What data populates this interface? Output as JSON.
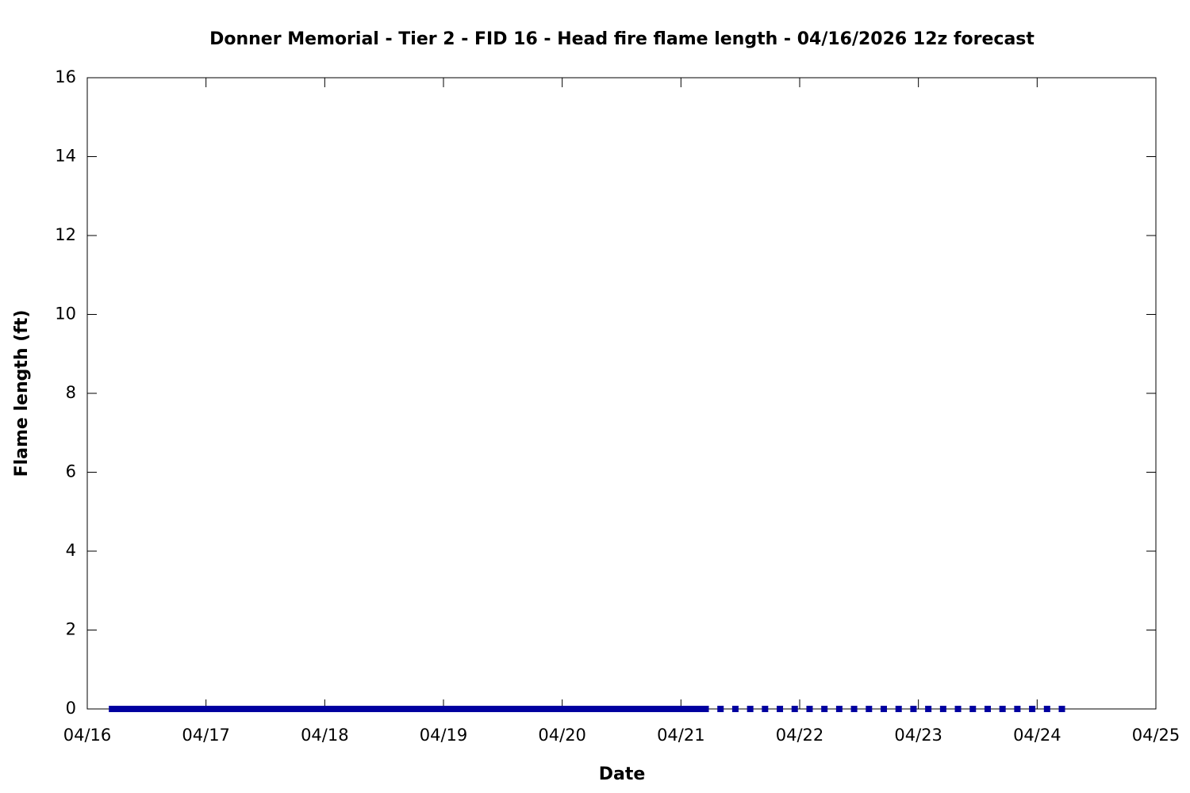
{
  "chart_data": {
    "type": "scatter",
    "title": "Donner Memorial - Tier 2 - FID 16 - Head fire flame length - 04/16/2026 12z forecast",
    "xlabel": "Date",
    "ylabel": "Flame length (ft)",
    "x": [
      5,
      6,
      7,
      8,
      9,
      10,
      11,
      12,
      13,
      14,
      15,
      16,
      17,
      18,
      19,
      20,
      21,
      22,
      23,
      24,
      25,
      26,
      27,
      28,
      29,
      30,
      31,
      32,
      33,
      34,
      35,
      36,
      37,
      38,
      39,
      40,
      41,
      42,
      43,
      44,
      45,
      46,
      47,
      48,
      49,
      50,
      51,
      52,
      53,
      54,
      55,
      56,
      57,
      58,
      59,
      60,
      61,
      62,
      63,
      64,
      65,
      66,
      67,
      68,
      69,
      70,
      71,
      72,
      73,
      74,
      75,
      76,
      77,
      78,
      79,
      80,
      81,
      82,
      83,
      84,
      85,
      86,
      87,
      88,
      89,
      90,
      91,
      92,
      93,
      94,
      95,
      96,
      97,
      98,
      99,
      100,
      101,
      102,
      103,
      104,
      105,
      106,
      107,
      108,
      109,
      110,
      111,
      112,
      113,
      114,
      115,
      116,
      117,
      118,
      119,
      120,
      121,
      122,
      123,
      124,
      125,
      128,
      131,
      134,
      137,
      140,
      143,
      146,
      149,
      152,
      155,
      158,
      161,
      164,
      167,
      170,
      173,
      176,
      179,
      182,
      185,
      188,
      191,
      194,
      197
    ],
    "values": [
      0,
      0,
      0,
      0,
      0,
      0,
      0,
      0,
      0,
      0,
      0,
      0,
      0,
      0,
      0,
      0,
      0,
      0,
      0,
      0,
      0,
      0,
      0,
      0,
      0,
      0,
      0,
      0,
      0,
      0,
      0,
      0,
      0,
      0,
      0,
      0,
      0,
      0,
      0,
      0,
      0,
      0,
      0,
      0,
      0,
      0,
      0,
      0,
      0,
      0,
      0,
      0,
      0,
      0,
      0,
      0,
      0,
      0,
      0,
      0,
      0,
      0,
      0,
      0,
      0,
      0,
      0,
      0,
      0,
      0,
      0,
      0,
      0,
      0,
      0,
      0,
      0,
      0,
      0,
      0,
      0,
      0,
      0,
      0,
      0,
      0,
      0,
      0,
      0,
      0,
      0,
      0,
      0,
      0,
      0,
      0,
      0,
      0,
      0,
      0,
      0,
      0,
      0,
      0,
      0,
      0,
      0,
      0,
      0,
      0,
      0,
      0,
      0,
      0,
      0,
      0,
      0,
      0,
      0,
      0,
      0,
      0,
      0,
      0,
      0,
      0,
      0,
      0,
      0,
      0,
      0,
      0,
      0,
      0,
      0,
      0,
      0,
      0,
      0,
      0,
      0,
      0,
      0,
      0,
      0
    ],
    "color": "#0000a0",
    "xlim": [
      0,
      216
    ],
    "xticks": [
      {
        "value": 0,
        "label": "04/16"
      },
      {
        "value": 24,
        "label": "04/17"
      },
      {
        "value": 48,
        "label": "04/18"
      },
      {
        "value": 72,
        "label": "04/19"
      },
      {
        "value": 96,
        "label": "04/20"
      },
      {
        "value": 120,
        "label": "04/21"
      },
      {
        "value": 144,
        "label": "04/22"
      },
      {
        "value": 168,
        "label": "04/23"
      },
      {
        "value": 192,
        "label": "04/24"
      },
      {
        "value": 216,
        "label": "04/25"
      }
    ],
    "ylim": [
      0,
      16
    ],
    "yticks": [
      0,
      2,
      4,
      6,
      8,
      10,
      12,
      14,
      16
    ],
    "grid": false
  }
}
